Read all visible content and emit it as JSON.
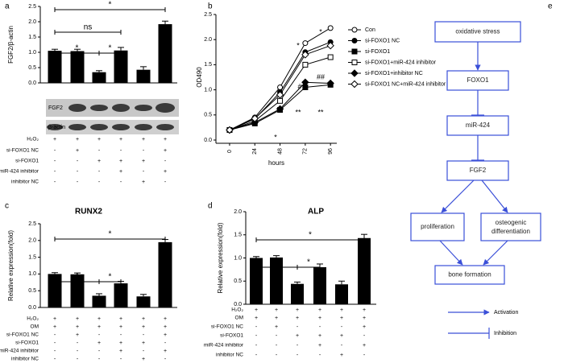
{
  "chart_data": [
    {
      "type": "bar",
      "panel_label": "a",
      "ylabel": "FGF2/β-actin",
      "color": "#000000",
      "values": [
        1.05,
        1.04,
        0.35,
        1.06,
        0.43,
        1.92
      ],
      "errors": [
        0.05,
        0.06,
        0.05,
        0.1,
        0.1,
        0.1
      ],
      "ylim": [
        0,
        2.5
      ],
      "yticks": [
        {
          "value": 0,
          "label": "0.0"
        },
        {
          "value": 0.5,
          "label": "0.5"
        },
        {
          "value": 1,
          "label": "1.0"
        },
        {
          "value": 1.5,
          "label": "1.5"
        },
        {
          "value": 2,
          "label": "2.0"
        },
        {
          "value": 2.5,
          "label": "2.5"
        }
      ],
      "annotations": [
        "*",
        "ns",
        "*",
        "*"
      ],
      "blot_labels": [
        "FGF2",
        "β-actin"
      ],
      "conditions": [
        {
          "label": "H₂O₂",
          "cells": [
            "+",
            "+",
            "+",
            "+",
            "+",
            "+"
          ]
        },
        {
          "label": "si-FOXO1 NC",
          "cells": [
            "-",
            "+",
            "-",
            "-",
            "-",
            "+"
          ]
        },
        {
          "label": "si-FOXO1",
          "cells": [
            "-",
            "-",
            "+",
            "+",
            "+",
            "-"
          ]
        },
        {
          "label": "miR-424 inhibitor",
          "cells": [
            "-",
            "-",
            "-",
            "+",
            "-",
            "+"
          ]
        },
        {
          "label": "inhibitor NC",
          "cells": [
            "-",
            "-",
            "-",
            "-",
            "+",
            "-"
          ]
        }
      ]
    },
    {
      "type": "line",
      "panel_label": "b",
      "xlabel": "hours",
      "ylabel": "OD490",
      "x": [
        0,
        24,
        48,
        72,
        96
      ],
      "xlim": [
        -13,
        102
      ],
      "xticks": [
        0,
        24,
        48,
        72,
        96
      ],
      "ylim": [
        0,
        2.5
      ],
      "yticks": [
        {
          "value": 0,
          "label": "0.0"
        },
        {
          "value": 0.5,
          "label": "0.5"
        },
        {
          "value": 1,
          "label": "1.0"
        },
        {
          "value": 1.5,
          "label": "1.5"
        },
        {
          "value": 2,
          "label": "2.0"
        },
        {
          "value": 2.5,
          "label": "2.5"
        }
      ],
      "series": [
        {
          "name": "Con",
          "color": "#000000",
          "marker": "circle-open",
          "values": [
            0.2,
            0.45,
            1.05,
            1.93,
            2.23
          ]
        },
        {
          "name": "si-FOXO1 NC",
          "color": "#000000",
          "marker": "circle",
          "values": [
            0.2,
            0.42,
            0.95,
            1.75,
            1.95
          ]
        },
        {
          "name": "si-FOXO1",
          "color": "#000000",
          "marker": "square",
          "values": [
            0.2,
            0.33,
            0.6,
            1.05,
            1.1
          ]
        },
        {
          "name": "si-FOXO1+miR-424 inhibitor",
          "color": "#000000",
          "marker": "square-open",
          "values": [
            0.2,
            0.38,
            0.78,
            1.5,
            1.65
          ]
        },
        {
          "name": "si-FOXO1+inhibitor NC",
          "color": "#000000",
          "marker": "diamond",
          "values": [
            0.2,
            0.35,
            0.62,
            1.15,
            1.13
          ]
        },
        {
          "name": "si-FOXO1 NC+miR-424 inhibitor",
          "color": "#000000",
          "marker": "diamond-open",
          "values": [
            0.2,
            0.43,
            0.9,
            1.7,
            1.88
          ]
        }
      ],
      "annotations": [
        "*",
        "*",
        "#",
        "##",
        "*",
        "**",
        "**"
      ]
    },
    {
      "type": "bar",
      "panel_label": "c",
      "title": "RUNX2",
      "ylabel": "Relative expression(fold)",
      "color": "#000000",
      "values": [
        1.0,
        0.99,
        0.35,
        0.72,
        0.33,
        1.95
      ],
      "errors": [
        0.04,
        0.04,
        0.06,
        0.06,
        0.06,
        0.08
      ],
      "ylim": [
        0,
        2.5
      ],
      "yticks": [
        {
          "value": 0,
          "label": "0.0"
        },
        {
          "value": 0.5,
          "label": "0.5"
        },
        {
          "value": 1,
          "label": "1.0"
        },
        {
          "value": 1.5,
          "label": "1.5"
        },
        {
          "value": 2,
          "label": "2.0"
        },
        {
          "value": 2.5,
          "label": "2.5"
        }
      ],
      "annotations": [
        "*",
        "*",
        "*"
      ],
      "conditions": [
        {
          "label": "H₂O₂",
          "cells": [
            "+",
            "+",
            "+",
            "+",
            "+",
            "+"
          ]
        },
        {
          "label": "OM",
          "cells": [
            "+",
            "+",
            "+",
            "+",
            "+",
            "+"
          ]
        },
        {
          "label": "si-FOXO1 NC",
          "cells": [
            "-",
            "+",
            "-",
            "-",
            "-",
            "+"
          ]
        },
        {
          "label": "si-FOXO1",
          "cells": [
            "-",
            "-",
            "+",
            "+",
            "+",
            "-"
          ]
        },
        {
          "label": "miR-424 inhibitor",
          "cells": [
            "-",
            "-",
            "-",
            "+",
            "-",
            "+"
          ]
        },
        {
          "label": "inhibitor NC",
          "cells": [
            "-",
            "-",
            "-",
            "-",
            "+",
            "-"
          ]
        }
      ]
    },
    {
      "type": "bar",
      "panel_label": "d",
      "title": "ALP",
      "ylabel": "Relative expression(fold)",
      "color": "#000000",
      "values": [
        1.0,
        1.01,
        0.44,
        0.8,
        0.43,
        1.43
      ],
      "errors": [
        0.03,
        0.04,
        0.04,
        0.07,
        0.07,
        0.08
      ],
      "ylim": [
        0,
        2
      ],
      "yticks": [
        {
          "value": 0,
          "label": "0.0"
        },
        {
          "value": 0.5,
          "label": "0.5"
        },
        {
          "value": 1,
          "label": "1.0"
        },
        {
          "value": 1.5,
          "label": "1.5"
        },
        {
          "value": 2,
          "label": "2.0"
        }
      ],
      "annotations": [
        "*",
        "*",
        "*"
      ],
      "conditions": [
        {
          "label": "H₂O₂",
          "cells": [
            "+",
            "+",
            "+",
            "+",
            "+",
            "+"
          ]
        },
        {
          "label": "OM",
          "cells": [
            "+",
            "+",
            "+",
            "+",
            "+",
            "+"
          ]
        },
        {
          "label": "si-FOXO1 NC",
          "cells": [
            "-",
            "+",
            "-",
            "-",
            "-",
            "+"
          ]
        },
        {
          "label": "si-FOXO1",
          "cells": [
            "-",
            "-",
            "+",
            "+",
            "+",
            "-"
          ]
        },
        {
          "label": "miR-424 inhibitor",
          "cells": [
            "-",
            "-",
            "-",
            "+",
            "-",
            "+"
          ]
        },
        {
          "label": "inhibitor NC",
          "cells": [
            "-",
            "-",
            "-",
            "-",
            "+",
            "-"
          ]
        }
      ]
    }
  ],
  "diagram": {
    "panel_label": "e",
    "nodes": [
      "oxidative stress",
      "FOXO1",
      "miR-424",
      "FGF2",
      "proliferation",
      [
        "osteogenic",
        "differentiation"
      ],
      "bone formation"
    ],
    "legend": [
      "Activation",
      "Inhibition"
    ]
  }
}
